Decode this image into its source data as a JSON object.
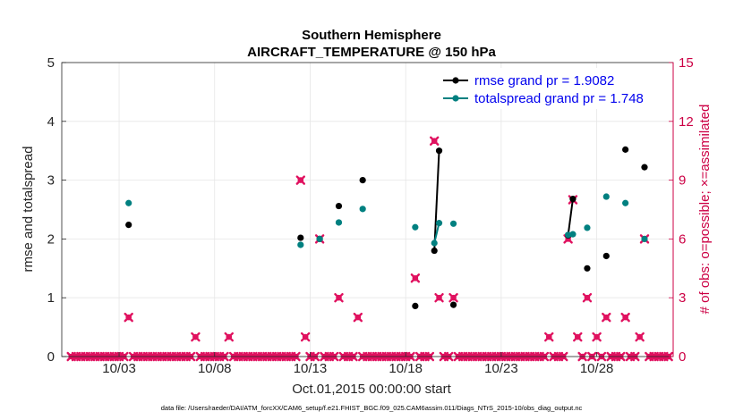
{
  "chart_data": {
    "type": "scatter",
    "title": "Southern Hemisphere",
    "subtitle": "AIRCRAFT_TEMPERATURE @ 150 hPa",
    "xlabel": "Oct.01,2015 00:00:00 start",
    "ylabel": "rmse and totalspread",
    "ylabel_right": "# of obs: o=possible; ×=assimilated",
    "footnote": "data file: /Users/raeder/DAI/ATM_forcXX/CAM6_setup/f.e21.FHIST_BGC.f09_025.CAM6assim.011/Diags_NTrS_2015-10/obs_diag_output.nc",
    "xlim": [
      0.5,
      32.5
    ],
    "ylim": [
      0,
      5
    ],
    "ylim_right": [
      0,
      15
    ],
    "x_ticks": [
      3.5,
      8.5,
      13.5,
      18.5,
      23.5,
      28.5
    ],
    "x_tick_labels": [
      "10/03",
      "10/08",
      "10/13",
      "10/18",
      "10/23",
      "10/28"
    ],
    "y_ticks": [
      0,
      1,
      2,
      3,
      4,
      5
    ],
    "y_ticks_right": [
      0,
      3,
      6,
      9,
      12,
      15
    ],
    "grid": true,
    "legend_position": "top-right",
    "colors": {
      "rmse": "#000000",
      "spread": "#008080",
      "obs": "#e0115f",
      "right_axis": "#cc0044",
      "legend_text": "#0000ee"
    },
    "series": [
      {
        "name": "rmse grand pr = 1.9082",
        "color": "#000000",
        "points": [
          [
            4,
            2.24
          ],
          [
            13,
            2.02
          ],
          [
            14,
            2.0
          ],
          [
            15,
            2.56
          ],
          [
            16.25,
            3.0
          ],
          [
            19,
            0.86
          ],
          [
            20,
            1.8
          ],
          [
            20.25,
            3.5
          ],
          [
            21,
            0.88
          ],
          [
            27,
            2.06
          ],
          [
            27.25,
            2.68
          ],
          [
            28,
            1.5
          ],
          [
            29,
            1.71
          ],
          [
            30,
            3.52
          ],
          [
            31,
            3.22
          ]
        ],
        "segments": [
          [
            [
              20,
              1.8
            ],
            [
              20.25,
              3.5
            ]
          ],
          [
            [
              27,
              2.06
            ],
            [
              27.25,
              2.68
            ]
          ]
        ]
      },
      {
        "name": "totalspread grand pr = 1.748",
        "color": "#008080",
        "points": [
          [
            4,
            2.61
          ],
          [
            13,
            1.9
          ],
          [
            14,
            2.0
          ],
          [
            15,
            2.28
          ],
          [
            16.25,
            2.51
          ],
          [
            19,
            2.2
          ],
          [
            20,
            1.93
          ],
          [
            20.25,
            2.27
          ],
          [
            21,
            2.26
          ],
          [
            27,
            2.07
          ],
          [
            27.25,
            2.08
          ],
          [
            28,
            2.19
          ],
          [
            29,
            2.72
          ],
          [
            30,
            2.61
          ],
          [
            31,
            2.0
          ]
        ],
        "segments": [
          [
            [
              20,
              1.93
            ],
            [
              20.25,
              2.27
            ]
          ],
          [
            [
              27,
              2.07
            ],
            [
              27.25,
              2.08
            ]
          ]
        ]
      }
    ],
    "obs_possible": [
      [
        1,
        0
      ],
      [
        1.25,
        0
      ],
      [
        1.5,
        0
      ],
      [
        1.75,
        0
      ],
      [
        2,
        0
      ],
      [
        2.25,
        0
      ],
      [
        2.5,
        0
      ],
      [
        2.75,
        0
      ],
      [
        3,
        0
      ],
      [
        3.25,
        0
      ],
      [
        3.5,
        0
      ],
      [
        3.75,
        0
      ],
      [
        4,
        2
      ],
      [
        4.25,
        0
      ],
      [
        4.5,
        0
      ],
      [
        4.75,
        0
      ],
      [
        5,
        0
      ],
      [
        5.25,
        0
      ],
      [
        5.5,
        0
      ],
      [
        5.75,
        0
      ],
      [
        6,
        0
      ],
      [
        6.25,
        0
      ],
      [
        6.5,
        0
      ],
      [
        6.75,
        0
      ],
      [
        7,
        0
      ],
      [
        7.25,
        0
      ],
      [
        7.5,
        1
      ],
      [
        7.75,
        0
      ],
      [
        8,
        0
      ],
      [
        8.25,
        0
      ],
      [
        8.5,
        0
      ],
      [
        8.75,
        0
      ],
      [
        9,
        0
      ],
      [
        9.25,
        1
      ],
      [
        9.5,
        0
      ],
      [
        9.75,
        0
      ],
      [
        10,
        0
      ],
      [
        10.25,
        0
      ],
      [
        10.5,
        0
      ],
      [
        10.75,
        0
      ],
      [
        11,
        0
      ],
      [
        11.25,
        0
      ],
      [
        11.5,
        0
      ],
      [
        11.75,
        0
      ],
      [
        12,
        0
      ],
      [
        12.25,
        0
      ],
      [
        12.5,
        0
      ],
      [
        12.75,
        0
      ],
      [
        13,
        9
      ],
      [
        13.25,
        1
      ],
      [
        13.5,
        0
      ],
      [
        13.75,
        0
      ],
      [
        14,
        6
      ],
      [
        14.25,
        0
      ],
      [
        14.5,
        0
      ],
      [
        14.75,
        0
      ],
      [
        15,
        3
      ],
      [
        15.25,
        0
      ],
      [
        15.5,
        0
      ],
      [
        15.75,
        0
      ],
      [
        16,
        2
      ],
      [
        16.25,
        0
      ],
      [
        16.5,
        0
      ],
      [
        16.75,
        0
      ],
      [
        17,
        0
      ],
      [
        17.25,
        0
      ],
      [
        17.5,
        0
      ],
      [
        17.75,
        0
      ],
      [
        18,
        0
      ],
      [
        18.25,
        0
      ],
      [
        18.5,
        0
      ],
      [
        18.75,
        0
      ],
      [
        19,
        4
      ],
      [
        19.25,
        0
      ],
      [
        19.5,
        0
      ],
      [
        19.75,
        0
      ],
      [
        20,
        11
      ],
      [
        20.25,
        3
      ],
      [
        20.5,
        0
      ],
      [
        20.75,
        0
      ],
      [
        21,
        3
      ],
      [
        21.25,
        0
      ],
      [
        21.5,
        0
      ],
      [
        21.75,
        0
      ],
      [
        22,
        0
      ],
      [
        22.25,
        0
      ],
      [
        22.5,
        0
      ],
      [
        22.75,
        0
      ],
      [
        23,
        0
      ],
      [
        23.25,
        0
      ],
      [
        23.5,
        0
      ],
      [
        23.75,
        0
      ],
      [
        24,
        0
      ],
      [
        24.25,
        0
      ],
      [
        24.5,
        0
      ],
      [
        24.75,
        0
      ],
      [
        25,
        0
      ],
      [
        25.25,
        0
      ],
      [
        25.5,
        0
      ],
      [
        25.75,
        0
      ],
      [
        26,
        1
      ],
      [
        26.25,
        0
      ],
      [
        26.5,
        0
      ],
      [
        26.75,
        0
      ],
      [
        27,
        6
      ],
      [
        27.25,
        8
      ],
      [
        27.5,
        1
      ],
      [
        27.75,
        0
      ],
      [
        28,
        3
      ],
      [
        28.25,
        0
      ],
      [
        28.5,
        1
      ],
      [
        28.75,
        0
      ],
      [
        29,
        2
      ],
      [
        29.25,
        0
      ],
      [
        29.5,
        0
      ],
      [
        29.75,
        0
      ],
      [
        30,
        2
      ],
      [
        30.25,
        0
      ],
      [
        30.5,
        0
      ],
      [
        30.75,
        1
      ],
      [
        31,
        6
      ],
      [
        31.25,
        0
      ],
      [
        31.5,
        0
      ],
      [
        31.75,
        0
      ],
      [
        32,
        0
      ],
      [
        32.25,
        0
      ]
    ],
    "obs_assimilated": [
      [
        1,
        0
      ],
      [
        1.25,
        0
      ],
      [
        1.5,
        0
      ],
      [
        1.75,
        0
      ],
      [
        2,
        0
      ],
      [
        2.25,
        0
      ],
      [
        2.5,
        0
      ],
      [
        2.75,
        0
      ],
      [
        3,
        0
      ],
      [
        3.25,
        0
      ],
      [
        3.5,
        0
      ],
      [
        3.75,
        0
      ],
      [
        4,
        2
      ],
      [
        4.25,
        0
      ],
      [
        4.5,
        0
      ],
      [
        4.75,
        0
      ],
      [
        5,
        0
      ],
      [
        5.25,
        0
      ],
      [
        5.5,
        0
      ],
      [
        5.75,
        0
      ],
      [
        6,
        0
      ],
      [
        6.25,
        0
      ],
      [
        6.5,
        0
      ],
      [
        6.75,
        0
      ],
      [
        7,
        0
      ],
      [
        7.25,
        0
      ],
      [
        7.5,
        1
      ],
      [
        7.75,
        0
      ],
      [
        8,
        0
      ],
      [
        8.25,
        0
      ],
      [
        8.5,
        0
      ],
      [
        8.75,
        0
      ],
      [
        9,
        0
      ],
      [
        9.25,
        1
      ],
      [
        9.5,
        0
      ],
      [
        9.75,
        0
      ],
      [
        10,
        0
      ],
      [
        10.25,
        0
      ],
      [
        10.5,
        0
      ],
      [
        10.75,
        0
      ],
      [
        11,
        0
      ],
      [
        11.25,
        0
      ],
      [
        11.5,
        0
      ],
      [
        11.75,
        0
      ],
      [
        12,
        0
      ],
      [
        12.25,
        0
      ],
      [
        12.5,
        0
      ],
      [
        12.75,
        0
      ],
      [
        13,
        9
      ],
      [
        13.25,
        1
      ],
      [
        13.5,
        0
      ],
      [
        13.75,
        0
      ],
      [
        14,
        6
      ],
      [
        14.25,
        0
      ],
      [
        14.5,
        0
      ],
      [
        14.75,
        0
      ],
      [
        15,
        3
      ],
      [
        15.25,
        0
      ],
      [
        15.5,
        0
      ],
      [
        15.75,
        0
      ],
      [
        16,
        2
      ],
      [
        16.25,
        0
      ],
      [
        16.5,
        0
      ],
      [
        16.75,
        0
      ],
      [
        17,
        0
      ],
      [
        17.25,
        0
      ],
      [
        17.5,
        0
      ],
      [
        17.75,
        0
      ],
      [
        18,
        0
      ],
      [
        18.25,
        0
      ],
      [
        18.5,
        0
      ],
      [
        18.75,
        0
      ],
      [
        19,
        4
      ],
      [
        19.25,
        0
      ],
      [
        19.5,
        0
      ],
      [
        19.75,
        0
      ],
      [
        20,
        11
      ],
      [
        20.25,
        3
      ],
      [
        20.5,
        0
      ],
      [
        20.75,
        0
      ],
      [
        21,
        3
      ],
      [
        21.25,
        0
      ],
      [
        21.5,
        0
      ],
      [
        21.75,
        0
      ],
      [
        22,
        0
      ],
      [
        22.25,
        0
      ],
      [
        22.5,
        0
      ],
      [
        22.75,
        0
      ],
      [
        23,
        0
      ],
      [
        23.25,
        0
      ],
      [
        23.5,
        0
      ],
      [
        23.75,
        0
      ],
      [
        24,
        0
      ],
      [
        24.25,
        0
      ],
      [
        24.5,
        0
      ],
      [
        24.75,
        0
      ],
      [
        25,
        0
      ],
      [
        25.25,
        0
      ],
      [
        25.5,
        0
      ],
      [
        25.75,
        0
      ],
      [
        26,
        1
      ],
      [
        26.25,
        0
      ],
      [
        26.5,
        0
      ],
      [
        26.75,
        0
      ],
      [
        27,
        6
      ],
      [
        27.25,
        8
      ],
      [
        27.5,
        1
      ],
      [
        27.75,
        0
      ],
      [
        28,
        3
      ],
      [
        28.25,
        0
      ],
      [
        28.5,
        1
      ],
      [
        28.75,
        0
      ],
      [
        29,
        2
      ],
      [
        29.25,
        0
      ],
      [
        29.5,
        0
      ],
      [
        29.75,
        0
      ],
      [
        30,
        2
      ],
      [
        30.25,
        0
      ],
      [
        30.5,
        0
      ],
      [
        30.75,
        1
      ],
      [
        31,
        6
      ],
      [
        31.25,
        0
      ],
      [
        31.5,
        0
      ],
      [
        31.75,
        0
      ],
      [
        32,
        0
      ],
      [
        32.25,
        0
      ]
    ]
  }
}
